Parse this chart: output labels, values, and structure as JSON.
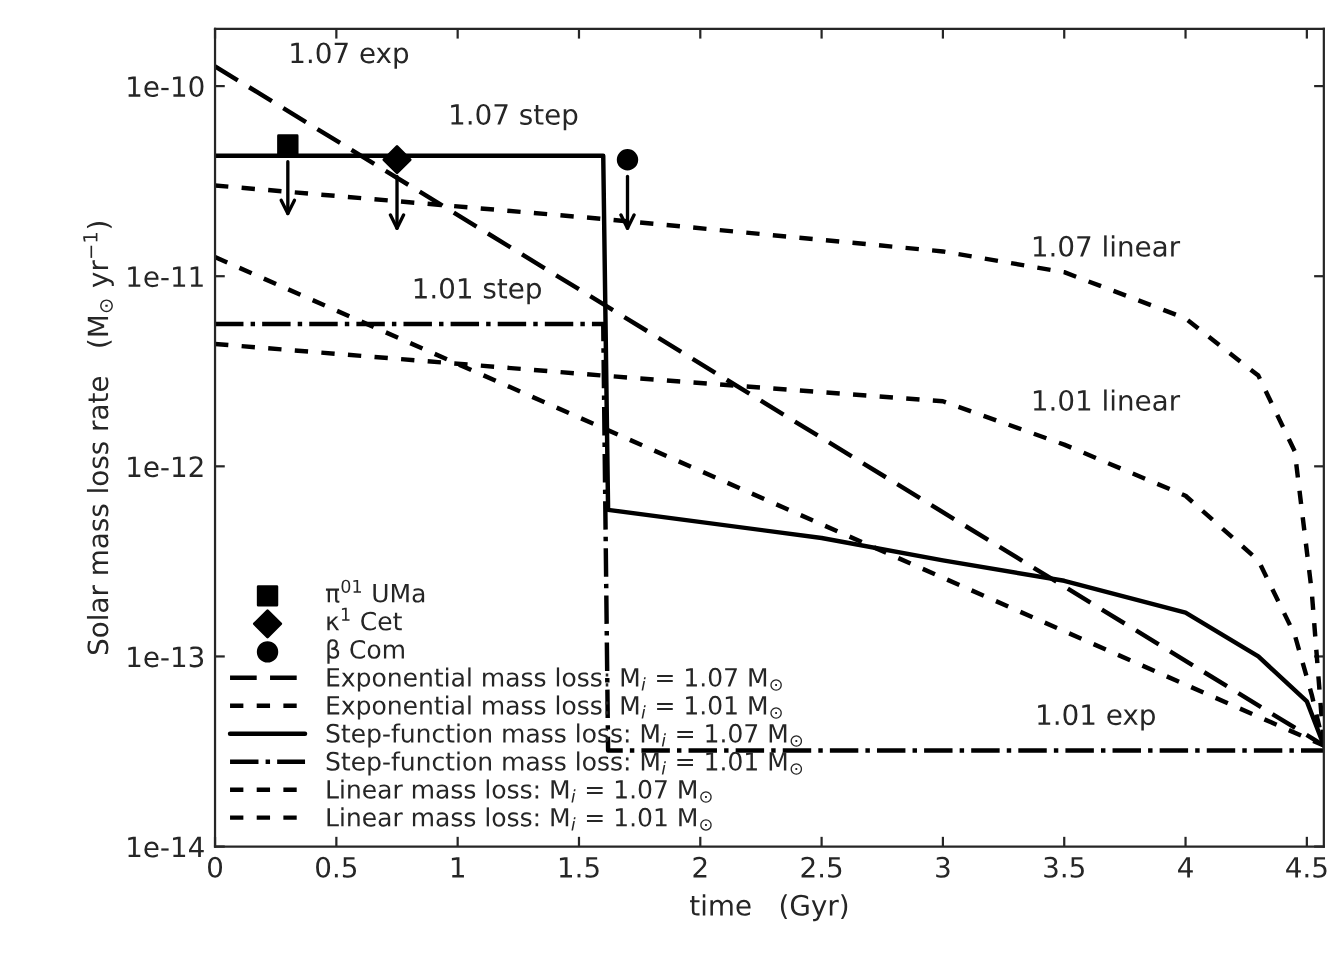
{
  "chart_data": {
    "type": "line",
    "xlabel": "time   (Gyr)",
    "ylabel": "Solar mass loss rate   (M$_{⊙}$ yr$^{−1}$)",
    "log": "y",
    "xlim": [
      0,
      4.57
    ],
    "ylim": [
      1e-14,
      2e-10
    ],
    "xticks": [
      0,
      0.5,
      1,
      1.5,
      2,
      2.5,
      3,
      3.5,
      4,
      4.5
    ],
    "yticks": [
      {
        "value": 1e-14,
        "label": "1e-14"
      },
      {
        "value": 1e-13,
        "label": "1e-13"
      },
      {
        "value": 1e-12,
        "label": "1e-12"
      },
      {
        "value": 1e-11,
        "label": "1e-11"
      },
      {
        "value": 1e-10,
        "label": "1e-10"
      }
    ],
    "grid": false,
    "legend": "bottom left",
    "series": [
      {
        "name": "π$^{01}$ UMa",
        "type": "scatter",
        "marker": "square",
        "color": "#000000",
        "x": [
          0.3
        ],
        "values": [
          4.9e-11
        ]
      },
      {
        "name": "κ$^{1}$ Cet",
        "type": "scatter",
        "marker": "diamond",
        "color": "#000000",
        "x": [
          0.75
        ],
        "values": [
          4.1e-11
        ]
      },
      {
        "name": "β Com",
        "type": "scatter",
        "marker": "circle",
        "color": "#000000",
        "x": [
          1.7
        ],
        "values": [
          4.1e-11
        ]
      },
      {
        "name": "Exponential mass loss: M$_{i}$ = 1.07 M$_{⊙}$",
        "line_style": "dashed",
        "color": "#000000",
        "x": [
          0,
          4.57
        ],
        "values": [
          1.27e-10,
          3.4e-14
        ]
      },
      {
        "name": "Exponential mass loss: M$_{i}$ = 1.01 M$_{⊙}$",
        "line_style": "dotted",
        "color": "#000000",
        "x": [
          0,
          4.57
        ],
        "values": [
          1.26e-11,
          3.4e-14
        ]
      },
      {
        "name": "Step-function mass loss: M$_{i}$ = 1.07 M$_{⊙}$",
        "line_style": "solid",
        "color": "#000000",
        "x": [
          0,
          1.6,
          1.62,
          2.5,
          3.0,
          3.5,
          4.0,
          4.3,
          4.5,
          4.57
        ],
        "values": [
          4.3e-11,
          4.3e-11,
          5.9e-13,
          4.2e-13,
          3.2e-13,
          2.5e-13,
          1.7e-13,
          1e-13,
          5.8e-14,
          3.4e-14
        ]
      },
      {
        "name": "Step-function mass loss: M$_{i}$ = 1.01 M$_{⊙}$",
        "line_style": "dashdot",
        "color": "#000000",
        "x": [
          0,
          1.6,
          1.62,
          4.57
        ],
        "values": [
          5.6e-12,
          5.6e-12,
          3.2e-14,
          3.2e-14
        ]
      },
      {
        "name": "Linear mass loss: M$_{i}$ = 1.07 M$_{⊙}$",
        "line_style": "dotted",
        "color": "#000000",
        "x": [
          0,
          1.6,
          3.0,
          3.5,
          4.0,
          4.3,
          4.45,
          4.52,
          4.57
        ],
        "values": [
          3e-11,
          2e-11,
          1.35e-11,
          1.05e-11,
          6e-12,
          3e-12,
          1.2e-12,
          2.2e-13,
          3.4e-14
        ]
      },
      {
        "name": "Linear mass loss: M$_{i}$ = 1.01 M$_{⊙}$",
        "line_style": "dotted",
        "color": "#000000",
        "x": [
          0,
          1.6,
          3.0,
          3.5,
          4.0,
          4.3,
          4.45,
          4.52,
          4.57
        ],
        "values": [
          4.4e-12,
          3e-12,
          2.2e-12,
          1.3e-12,
          7e-13,
          3.2e-13,
          1.3e-13,
          6.3e-14,
          3.4e-14
        ]
      }
    ],
    "annotations": [
      {
        "text": "1.07 exp",
        "x": 0.3,
        "y": 7.4e-11
      },
      {
        "text": "1.07 step",
        "x": 1.23,
        "y": 4.3e-11
      },
      {
        "text": "1.07 linear",
        "x": 3.67,
        "y": 9e-12
      },
      {
        "text": "1.01 step",
        "x": 1.08,
        "y": 5.6e-12
      },
      {
        "text": "1.01 linear",
        "x": 3.67,
        "y": 1.1e-12
      },
      {
        "text": "1.01 exp",
        "x": 3.63,
        "y": 1.15e-13
      }
    ]
  }
}
